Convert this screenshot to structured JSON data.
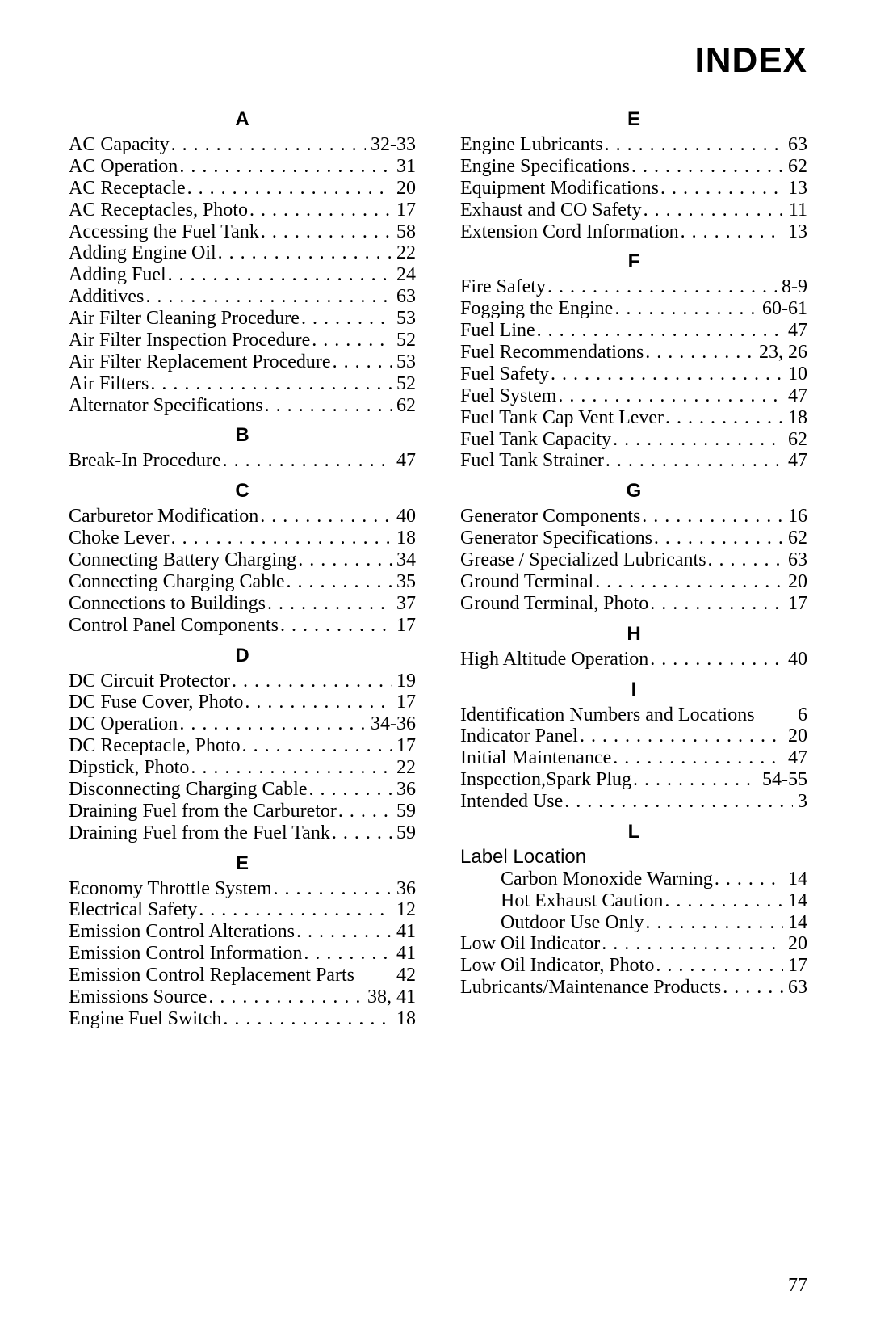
{
  "title": "INDEX",
  "pageNumber": "77",
  "leftColumn": [
    {
      "type": "head",
      "text": "A"
    },
    {
      "type": "entry",
      "label": "AC Capacity",
      "pages": "32-33"
    },
    {
      "type": "entry",
      "label": "AC Operation",
      "pages": "31"
    },
    {
      "type": "entry",
      "label": "AC Receptacle",
      "pages": "20"
    },
    {
      "type": "entry",
      "label": "AC Receptacles, Photo",
      "pages": "17"
    },
    {
      "type": "entry",
      "label": "Accessing the Fuel Tank",
      "pages": "58"
    },
    {
      "type": "entry",
      "label": "Adding Engine Oil",
      "pages": "22"
    },
    {
      "type": "entry",
      "label": "Adding Fuel",
      "pages": "24"
    },
    {
      "type": "entry",
      "label": "Additives",
      "pages": "63"
    },
    {
      "type": "entry",
      "label": "Air Filter Cleaning Procedure",
      "pages": "53"
    },
    {
      "type": "entry",
      "label": "Air Filter Inspection Procedure",
      "pages": "52"
    },
    {
      "type": "entry",
      "label": "Air Filter Replacement Procedure",
      "pages": "53"
    },
    {
      "type": "entry",
      "label": "Air Filters",
      "pages": "52"
    },
    {
      "type": "entry",
      "label": "Alternator Specifications",
      "pages": "62"
    },
    {
      "type": "head",
      "text": "B"
    },
    {
      "type": "entry",
      "label": "Break-In Procedure",
      "pages": "47"
    },
    {
      "type": "head",
      "text": "C"
    },
    {
      "type": "entry",
      "label": "Carburetor Modification",
      "pages": "40"
    },
    {
      "type": "entry",
      "label": "Choke Lever",
      "pages": "18"
    },
    {
      "type": "entry",
      "label": "Connecting Battery Charging",
      "pages": "34"
    },
    {
      "type": "entry",
      "label": "Connecting Charging Cable",
      "pages": "35"
    },
    {
      "type": "entry",
      "label": "Connections to Buildings",
      "pages": "37"
    },
    {
      "type": "entry",
      "label": "Control Panel Components",
      "pages": "17"
    },
    {
      "type": "head",
      "text": "D"
    },
    {
      "type": "entry",
      "label": "DC Circuit Protector",
      "pages": "19"
    },
    {
      "type": "entry",
      "label": "DC Fuse Cover, Photo",
      "pages": "17"
    },
    {
      "type": "entry",
      "label": "DC Operation",
      "pages": "34-36"
    },
    {
      "type": "entry",
      "label": "DC Receptacle, Photo",
      "pages": "17"
    },
    {
      "type": "entry",
      "label": "Dipstick, Photo",
      "pages": "22"
    },
    {
      "type": "entry",
      "label": "Disconnecting Charging Cable",
      "pages": "36"
    },
    {
      "type": "entry",
      "label": "Draining Fuel from the Carburetor",
      "pages": "59"
    },
    {
      "type": "entry",
      "label": "Draining Fuel from the Fuel Tank",
      "pages": "59"
    },
    {
      "type": "head",
      "text": "E"
    },
    {
      "type": "entry",
      "label": "Economy Throttle System",
      "pages": "36"
    },
    {
      "type": "entry",
      "label": "Electrical Safety",
      "pages": "12"
    },
    {
      "type": "entry",
      "label": "Emission Control Alterations",
      "pages": "41"
    },
    {
      "type": "entry",
      "label": "Emission Control Information",
      "pages": "41"
    },
    {
      "type": "entry",
      "label": "Emission Control Replacement Parts",
      "pages": "42",
      "nodots": true
    },
    {
      "type": "entry",
      "label": "Emissions Source",
      "pages": "38, 41"
    },
    {
      "type": "entry",
      "label": "Engine Fuel Switch",
      "pages": "18"
    }
  ],
  "rightColumn": [
    {
      "type": "head",
      "text": "E"
    },
    {
      "type": "entry",
      "label": "Engine Lubricants",
      "pages": "63"
    },
    {
      "type": "entry",
      "label": "Engine Specifications",
      "pages": "62"
    },
    {
      "type": "entry",
      "label": "Equipment Modifications",
      "pages": "13"
    },
    {
      "type": "entry",
      "label": "Exhaust and CO Safety",
      "pages": "11"
    },
    {
      "type": "entry",
      "label": "Extension Cord Information",
      "pages": "13"
    },
    {
      "type": "head",
      "text": "F"
    },
    {
      "type": "entry",
      "label": "Fire Safety",
      "pages": "8-9"
    },
    {
      "type": "entry",
      "label": "Fogging the Engine",
      "pages": "60-61"
    },
    {
      "type": "entry",
      "label": "Fuel Line",
      "pages": "47"
    },
    {
      "type": "entry",
      "label": "Fuel Recommendations",
      "pages": "23, 26"
    },
    {
      "type": "entry",
      "label": "Fuel Safety",
      "pages": "10"
    },
    {
      "type": "entry",
      "label": "Fuel System",
      "pages": "47"
    },
    {
      "type": "entry",
      "label": "Fuel Tank Cap Vent Lever",
      "pages": "18"
    },
    {
      "type": "entry",
      "label": "Fuel Tank Capacity",
      "pages": "62"
    },
    {
      "type": "entry",
      "label": "Fuel Tank Strainer",
      "pages": "47"
    },
    {
      "type": "head",
      "text": "G"
    },
    {
      "type": "entry",
      "label": "Generator Components",
      "pages": "16"
    },
    {
      "type": "entry",
      "label": "Generator Specifications",
      "pages": "62"
    },
    {
      "type": "entry",
      "label": "Grease / Specialized Lubricants",
      "pages": "63"
    },
    {
      "type": "entry",
      "label": "Ground Terminal",
      "pages": "20"
    },
    {
      "type": "entry",
      "label": "Ground Terminal, Photo",
      "pages": "17"
    },
    {
      "type": "head",
      "text": "H"
    },
    {
      "type": "entry",
      "label": "High Altitude Operation",
      "pages": "40"
    },
    {
      "type": "head",
      "text": "I"
    },
    {
      "type": "entry",
      "label": "Identification Numbers and Locations",
      "pages": "6",
      "nodots": true
    },
    {
      "type": "entry",
      "label": "Indicator Panel",
      "pages": "20"
    },
    {
      "type": "entry",
      "label": "Initial Maintenance",
      "pages": "47"
    },
    {
      "type": "entry",
      "label": "Inspection,Spark Plug",
      "pages": "54-55"
    },
    {
      "type": "entry",
      "label": "Intended Use",
      "pages": "3"
    },
    {
      "type": "head",
      "text": "L"
    },
    {
      "type": "subhead",
      "label": "Label Location"
    },
    {
      "type": "entry",
      "label": "Carbon Monoxide Warning",
      "pages": "14",
      "sub": true
    },
    {
      "type": "entry",
      "label": "Hot Exhaust Caution",
      "pages": "14",
      "sub": true
    },
    {
      "type": "entry",
      "label": "Outdoor Use Only",
      "pages": "14",
      "sub": true
    },
    {
      "type": "entry",
      "label": "Low Oil Indicator",
      "pages": "20"
    },
    {
      "type": "entry",
      "label": "Low Oil Indicator, Photo",
      "pages": "17"
    },
    {
      "type": "entry",
      "label": "Lubricants/Maintenance Products",
      "pages": "63"
    }
  ]
}
